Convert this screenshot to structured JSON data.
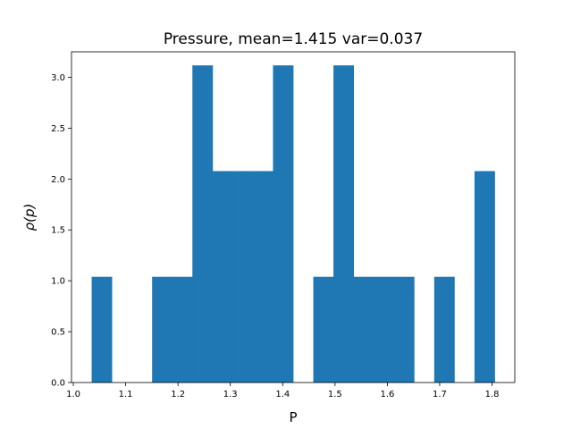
{
  "chart_data": {
    "type": "bar",
    "title": "Pressure, mean=1.415 var=0.037",
    "xlabel": "P",
    "ylabel": "ρ(p)",
    "xlim": [
      1.0,
      1.8
    ],
    "ylim": [
      0.0,
      3.25
    ],
    "xticks": [
      {
        "value": 1.0,
        "label": "1.0"
      },
      {
        "value": 1.1,
        "label": "1.1"
      },
      {
        "value": 1.2,
        "label": "1.2"
      },
      {
        "value": 1.3,
        "label": "1.3"
      },
      {
        "value": 1.4,
        "label": "1.4"
      },
      {
        "value": 1.5,
        "label": "1.5"
      },
      {
        "value": 1.6,
        "label": "1.6"
      },
      {
        "value": 1.7,
        "label": "1.7"
      },
      {
        "value": 1.8,
        "label": "1.8"
      }
    ],
    "yticks": [
      {
        "value": 0.0,
        "label": "0.0"
      },
      {
        "value": 0.5,
        "label": "0.5"
      },
      {
        "value": 1.0,
        "label": "1.0"
      },
      {
        "value": 1.5,
        "label": "1.5"
      },
      {
        "value": 2.0,
        "label": "2.0"
      },
      {
        "value": 2.5,
        "label": "2.5"
      },
      {
        "value": 3.0,
        "label": "3.0"
      }
    ],
    "bin_edges": [
      1.035,
      1.0735,
      1.112,
      1.1505,
      1.189,
      1.2275,
      1.266,
      1.3045,
      1.343,
      1.3815,
      1.42,
      1.4585,
      1.497,
      1.5355,
      1.574,
      1.6125,
      1.651,
      1.6895,
      1.728,
      1.7665,
      1.805
    ],
    "values": [
      1.039,
      0,
      0,
      1.039,
      1.039,
      3.117,
      2.078,
      2.078,
      2.078,
      3.117,
      0,
      1.039,
      3.117,
      1.039,
      1.039,
      1.039,
      0,
      1.039,
      0,
      2.078
    ],
    "bar_color": "#1f77b4",
    "grid": false,
    "legend": "none"
  }
}
